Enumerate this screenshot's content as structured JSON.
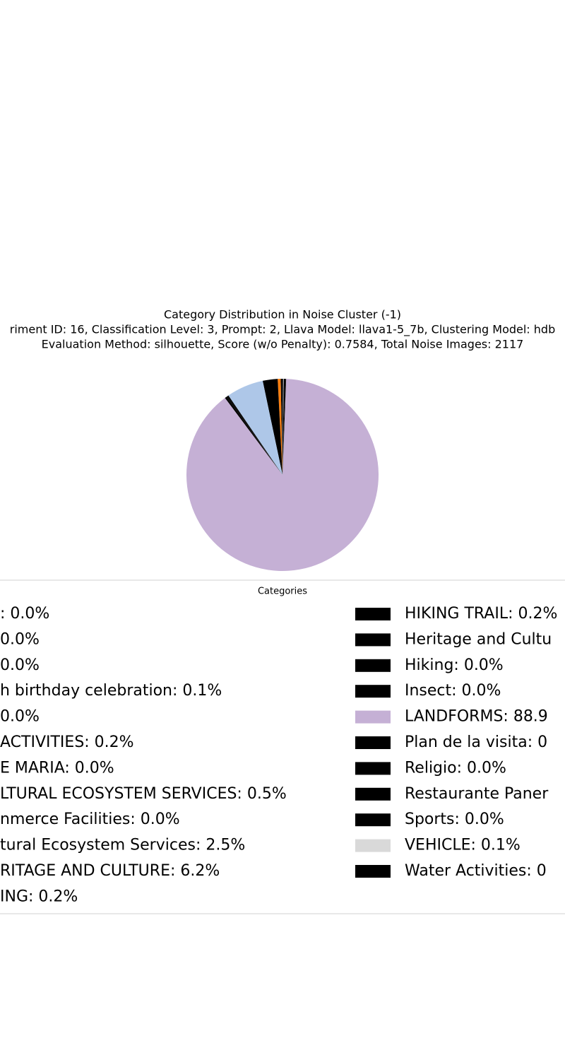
{
  "chart_data": {
    "type": "pie",
    "title": "Category Distribution in Noise Cluster (-1)",
    "subtitle": [
      "riment ID: 16, Classification Level: 3, Prompt: 2, Llava Model: llava1-5_7b, Clustering Model: hdb",
      "Evaluation Method: silhouette, Score (w/o Penalty): 0.7584, Total Noise Images: 2117"
    ],
    "legend_title": "Categories",
    "categories": [
      ": 0.0%",
      "0.0%",
      "0.0%",
      "h birthday celebration: 0.1%",
      "0.0%",
      "ACTIVITIES: 0.2%",
      "E MARIA: 0.0%",
      "LTURAL ECOSYSTEM SERVICES: 0.5%",
      "nmerce Facilities: 0.0%",
      "tural Ecosystem Services: 2.5%",
      "RITAGE AND CULTURE: 6.2%",
      "ING: 0.2%",
      "HIKING TRAIL: 0.2%",
      "Heritage and Cultu",
      "Hiking: 0.0%",
      "Insect: 0.0%",
      "LANDFORMS: 88.9",
      "Plan de la visita: 0",
      "Religio: 0.0%",
      "Restaurante Paner",
      "Sports: 0.0%",
      "VEHICLE: 0.1%",
      "Water Activities: 0"
    ],
    "values": [
      0.0,
      0.0,
      0.0,
      0.1,
      0.0,
      0.2,
      0.0,
      0.5,
      0.0,
      2.5,
      6.2,
      0.2,
      0.2,
      0.3,
      0.0,
      0.0,
      88.9,
      0.1,
      0.0,
      0.3,
      0.0,
      0.1,
      0.1
    ],
    "colors": [
      "#000000",
      "#000000",
      "#000000",
      "#000000",
      "#000000",
      "#000000",
      "#000000",
      "#ff7f0e",
      "#000000",
      "#000000",
      "#aec7e8",
      "#000000",
      "#000000",
      "#000000",
      "#000000",
      "#000000",
      "#c5b0d5",
      "#000000",
      "#000000",
      "#000000",
      "#000000",
      "#d9d9d9",
      "#000000"
    ]
  }
}
